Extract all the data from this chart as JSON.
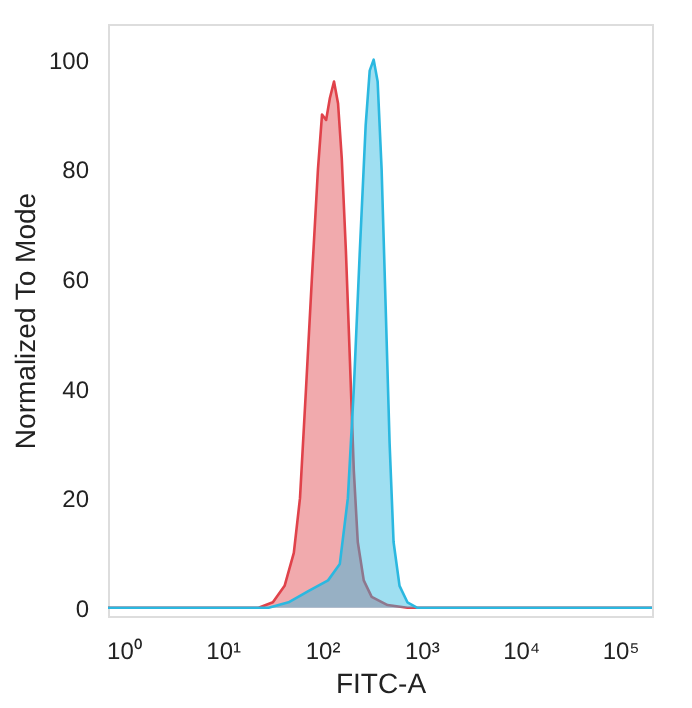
{
  "chart_data": {
    "type": "area",
    "xlabel": "FITC-A",
    "ylabel": "Normalized To Mode",
    "log": "x",
    "xlim": [
      0.7,
      210000
    ],
    "ylim": [
      -1.5,
      106.5
    ],
    "xticks": [
      {
        "value": 1,
        "label": "10⁰"
      },
      {
        "value": 10,
        "label": "10¹"
      },
      {
        "value": 100,
        "label": "10²"
      },
      {
        "value": 1000,
        "label": "10³"
      },
      {
        "value": 10000,
        "label": "10⁴"
      },
      {
        "value": 100000,
        "label": "10⁵"
      }
    ],
    "yticks": [
      0,
      20,
      40,
      60,
      80,
      100
    ],
    "grid": false,
    "series": [
      {
        "color": "#e0424a",
        "x": [
          0.7,
          23,
          32,
          42,
          52,
          60,
          69,
          79,
          91,
          100,
          110,
          120,
          132,
          145,
          158,
          174,
          191,
          209,
          229,
          263,
          316,
          457,
          724,
          210000
        ],
        "values": [
          0,
          0,
          1,
          4,
          10,
          20,
          40,
          60,
          80,
          90,
          89,
          93,
          96,
          92,
          82,
          65,
          45,
          25,
          12,
          5,
          2,
          0.5,
          0,
          0
        ]
      },
      {
        "color": "#2bb8e0",
        "x": [
          0.7,
          29,
          46,
          72,
          115,
          151,
          182,
          209,
          240,
          275,
          302,
          331,
          363,
          398,
          437,
          479,
          525,
          603,
          724,
          912,
          210000
        ],
        "values": [
          0,
          0,
          1,
          3,
          5,
          8,
          20,
          40,
          65,
          88,
          98,
          100,
          96,
          80,
          55,
          30,
          12,
          4,
          1,
          0,
          0
        ]
      }
    ]
  }
}
